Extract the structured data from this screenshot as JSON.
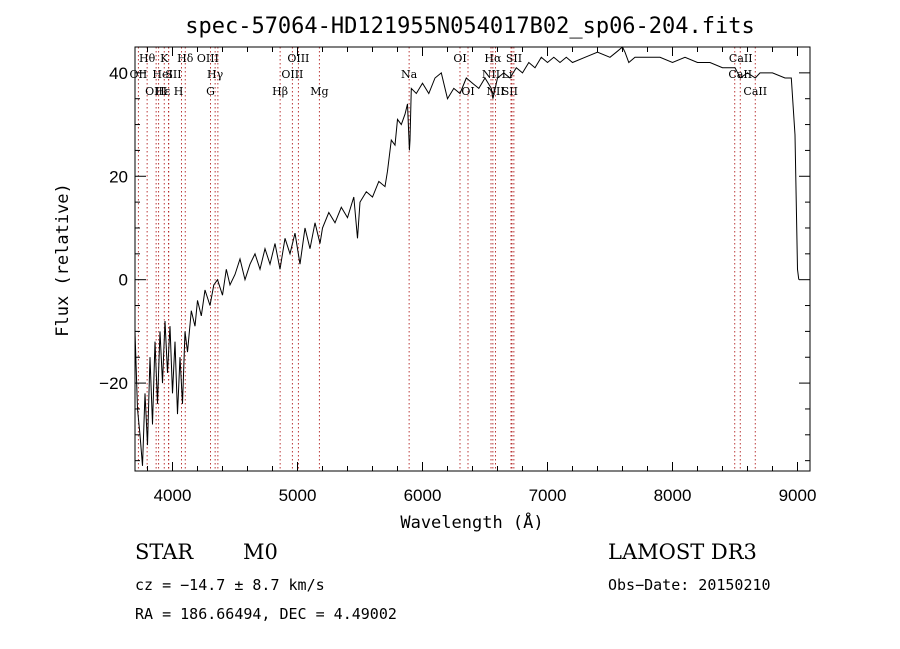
{
  "chart_data": {
    "type": "line",
    "title": "spec-57064-HD121955N054017B02_sp06-204.fits",
    "xlabel": "Wavelength (Å)",
    "ylabel": "Flux (relative)",
    "xlim": [
      3700,
      9100
    ],
    "ylim": [
      -37,
      45
    ],
    "xticks": [
      4000,
      5000,
      6000,
      7000,
      8000,
      9000
    ],
    "yticks": [
      -20,
      0,
      20,
      40
    ],
    "series": [
      {
        "name": "flux",
        "points": [
          [
            3700,
            -10
          ],
          [
            3720,
            -25
          ],
          [
            3740,
            -30
          ],
          [
            3760,
            -36
          ],
          [
            3780,
            -22
          ],
          [
            3800,
            -32
          ],
          [
            3820,
            -15
          ],
          [
            3840,
            -28
          ],
          [
            3860,
            -12
          ],
          [
            3880,
            -24
          ],
          [
            3900,
            -10
          ],
          [
            3920,
            -20
          ],
          [
            3940,
            -8
          ],
          [
            3960,
            -18
          ],
          [
            3980,
            -9
          ],
          [
            4000,
            -22
          ],
          [
            4020,
            -12
          ],
          [
            4040,
            -26
          ],
          [
            4060,
            -15
          ],
          [
            4080,
            -24
          ],
          [
            4100,
            -10
          ],
          [
            4120,
            -14
          ],
          [
            4150,
            -6
          ],
          [
            4180,
            -9
          ],
          [
            4200,
            -4
          ],
          [
            4230,
            -7
          ],
          [
            4260,
            -2
          ],
          [
            4300,
            -5
          ],
          [
            4330,
            -1
          ],
          [
            4360,
            0
          ],
          [
            4400,
            -3
          ],
          [
            4430,
            2
          ],
          [
            4460,
            -1
          ],
          [
            4500,
            1
          ],
          [
            4540,
            4
          ],
          [
            4580,
            0
          ],
          [
            4620,
            3
          ],
          [
            4660,
            5
          ],
          [
            4700,
            2
          ],
          [
            4740,
            6
          ],
          [
            4780,
            3
          ],
          [
            4820,
            7
          ],
          [
            4860,
            2
          ],
          [
            4900,
            8
          ],
          [
            4940,
            5
          ],
          [
            4980,
            9
          ],
          [
            5020,
            3
          ],
          [
            5060,
            10
          ],
          [
            5100,
            6
          ],
          [
            5140,
            11
          ],
          [
            5180,
            7
          ],
          [
            5200,
            10
          ],
          [
            5250,
            13
          ],
          [
            5300,
            11
          ],
          [
            5350,
            14
          ],
          [
            5400,
            12
          ],
          [
            5450,
            16
          ],
          [
            5480,
            8
          ],
          [
            5500,
            15
          ],
          [
            5550,
            17
          ],
          [
            5600,
            16
          ],
          [
            5650,
            19
          ],
          [
            5700,
            18
          ],
          [
            5720,
            21
          ],
          [
            5750,
            27
          ],
          [
            5780,
            26
          ],
          [
            5800,
            31
          ],
          [
            5830,
            30
          ],
          [
            5860,
            32
          ],
          [
            5880,
            34
          ],
          [
            5895,
            25
          ],
          [
            5900,
            27
          ],
          [
            5910,
            37
          ],
          [
            5950,
            36
          ],
          [
            6000,
            38
          ],
          [
            6050,
            36
          ],
          [
            6100,
            39
          ],
          [
            6150,
            40
          ],
          [
            6180,
            37
          ],
          [
            6200,
            35
          ],
          [
            6250,
            37
          ],
          [
            6300,
            36
          ],
          [
            6350,
            39
          ],
          [
            6400,
            38
          ],
          [
            6450,
            37
          ],
          [
            6500,
            39
          ],
          [
            6550,
            37
          ],
          [
            6563,
            35
          ],
          [
            6600,
            39
          ],
          [
            6650,
            40
          ],
          [
            6700,
            39
          ],
          [
            6750,
            41
          ],
          [
            6800,
            40
          ],
          [
            6850,
            42
          ],
          [
            6900,
            41
          ],
          [
            6950,
            43
          ],
          [
            7000,
            42
          ],
          [
            7050,
            43
          ],
          [
            7100,
            42
          ],
          [
            7150,
            43
          ],
          [
            7200,
            42
          ],
          [
            7300,
            43
          ],
          [
            7400,
            44
          ],
          [
            7500,
            43
          ],
          [
            7550,
            44
          ],
          [
            7600,
            45
          ],
          [
            7620,
            44
          ],
          [
            7650,
            42
          ],
          [
            7700,
            43
          ],
          [
            7800,
            43
          ],
          [
            7900,
            43
          ],
          [
            8000,
            42
          ],
          [
            8100,
            43
          ],
          [
            8200,
            42
          ],
          [
            8300,
            42
          ],
          [
            8400,
            41
          ],
          [
            8500,
            41
          ],
          [
            8542,
            39
          ],
          [
            8600,
            40
          ],
          [
            8662,
            39
          ],
          [
            8700,
            40
          ],
          [
            8800,
            40
          ],
          [
            8900,
            39
          ],
          [
            8950,
            39
          ],
          [
            8980,
            28
          ],
          [
            9000,
            2
          ],
          [
            9010,
            0
          ]
        ]
      }
    ],
    "line_markers": [
      {
        "label": "Hθ",
        "wavelength": 3797,
        "row": 1,
        "x_offset": 0
      },
      {
        "label": "OII",
        "wavelength": 3727,
        "row": 2,
        "x_offset": 0
      },
      {
        "label": "OIII",
        "wavelength": 3869,
        "row": 3,
        "x_offset": 0
      },
      {
        "label": "HeI",
        "wavelength": 3889,
        "row": 2,
        "x_offset": 4
      },
      {
        "label": "Hε",
        "wavelength": 3970,
        "row": 3,
        "x_offset": -6
      },
      {
        "label": "K",
        "wavelength": 3934,
        "row": 1,
        "x_offset": 0
      },
      {
        "label": "H",
        "wavelength": 3968,
        "row": 3,
        "x_offset": 10
      },
      {
        "label": "SII",
        "wavelength": 4072,
        "row": 2,
        "x_offset": -8
      },
      {
        "label": "Hδ",
        "wavelength": 4102,
        "row": 1,
        "x_offset": 0
      },
      {
        "label": "OIII",
        "wavelength": 4363,
        "row": 1,
        "x_offset": -10
      },
      {
        "label": "Hγ",
        "wavelength": 4341,
        "row": 2,
        "x_offset": 0
      },
      {
        "label": "G",
        "wavelength": 4304,
        "row": 3,
        "x_offset": 0
      },
      {
        "label": "Hβ",
        "wavelength": 4861,
        "row": 3,
        "x_offset": 0
      },
      {
        "label": "OIII",
        "wavelength": 5007,
        "row": 1,
        "x_offset": 0
      },
      {
        "label": "OIII",
        "wavelength": 4959,
        "row": 2,
        "x_offset": 0
      },
      {
        "label": "Mg",
        "wavelength": 5175,
        "row": 3,
        "x_offset": 0
      },
      {
        "label": "Na",
        "wavelength": 5893,
        "row": 2,
        "x_offset": 0
      },
      {
        "label": "OI",
        "wavelength": 6300,
        "row": 1,
        "x_offset": 0
      },
      {
        "label": "OI",
        "wavelength": 6364,
        "row": 3,
        "x_offset": 0
      },
      {
        "label": "Hα",
        "wavelength": 6563,
        "row": 1,
        "x_offset": 0
      },
      {
        "label": "SII",
        "wavelength": 6716,
        "row": 1,
        "x_offset": 2
      },
      {
        "label": "NII",
        "wavelength": 6548,
        "row": 2,
        "x_offset": 0
      },
      {
        "label": "Li",
        "wavelength": 6708,
        "row": 2,
        "x_offset": -4
      },
      {
        "label": "NII",
        "wavelength": 6584,
        "row": 3,
        "x_offset": 0
      },
      {
        "label": "SII",
        "wavelength": 6731,
        "row": 3,
        "x_offset": -4
      },
      {
        "label": "CaII",
        "wavelength": 8498,
        "row": 1,
        "x_offset": 6
      },
      {
        "label": "CaII",
        "wavelength": 8542,
        "row": 2,
        "x_offset": 0
      },
      {
        "label": "CaII",
        "wavelength": 8662,
        "row": 3,
        "x_offset": 0
      }
    ]
  },
  "info": {
    "object_class": "STAR",
    "subclass": "M0",
    "survey": "LAMOST DR3",
    "cz": "cz = −14.7 ± 8.7 km/s",
    "obs_date": "Obs−Date: 20150210",
    "coords": "RA = 186.66494, DEC =    4.49002"
  }
}
